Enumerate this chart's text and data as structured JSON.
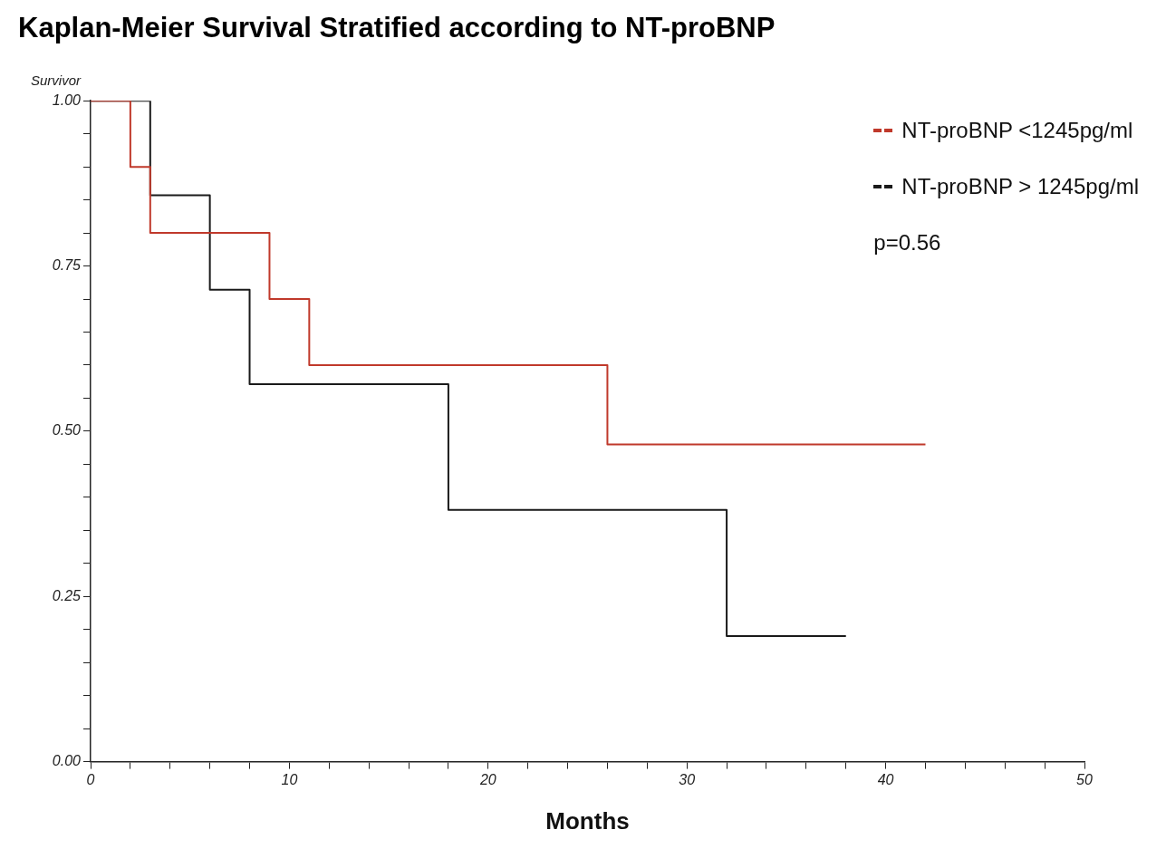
{
  "chart_data": {
    "type": "step",
    "title": "Kaplan-Meier Survival Stratified according to NT-proBNP",
    "xlabel": "Months",
    "ylabel": "Survivor",
    "series": [
      {
        "name": "NT-proBNP <1245pg/ml",
        "color": "#c0392b",
        "x": [
          0,
          2,
          3,
          9,
          11,
          26,
          42
        ],
        "values": [
          1,
          0.9,
          0.8,
          0.7,
          0.6,
          0.48,
          0.48
        ]
      },
      {
        "name": "NT-proBNP > 1245pg/ml",
        "color": "#1a1a1a",
        "x": [
          0,
          3,
          6,
          8,
          18,
          32,
          38
        ],
        "values": [
          1,
          0.857,
          0.714,
          0.571,
          0.381,
          0.19,
          0.19
        ]
      }
    ],
    "xlim": [
      0,
      50
    ],
    "xticks": [
      0,
      {
        "value": 2,
        "label": null
      },
      {
        "value": 4,
        "label": null
      },
      {
        "value": 6,
        "label": null
      },
      {
        "value": 8,
        "label": null
      },
      10,
      {
        "value": 12,
        "label": null
      },
      {
        "value": 14,
        "label": null
      },
      {
        "value": 16,
        "label": null
      },
      {
        "value": 18,
        "label": null
      },
      20,
      {
        "value": 22,
        "label": null
      },
      {
        "value": 24,
        "label": null
      },
      {
        "value": 26,
        "label": null
      },
      {
        "value": 28,
        "label": null
      },
      30,
      {
        "value": 32,
        "label": null
      },
      {
        "value": 34,
        "label": null
      },
      {
        "value": 36,
        "label": null
      },
      {
        "value": 38,
        "label": null
      },
      40,
      {
        "value": 42,
        "label": null
      },
      {
        "value": 44,
        "label": null
      },
      {
        "value": 46,
        "label": null
      },
      {
        "value": 48,
        "label": null
      },
      50
    ],
    "ylim": [
      0,
      1
    ],
    "yticks": [
      {
        "value": 0,
        "label": "0.00"
      },
      {
        "value": 0.05,
        "label": null
      },
      {
        "value": 0.1,
        "label": null
      },
      {
        "value": 0.15,
        "label": null
      },
      {
        "value": 0.2,
        "label": null
      },
      {
        "value": 0.25,
        "label": "0.25"
      },
      {
        "value": 0.3,
        "label": null
      },
      {
        "value": 0.35,
        "label": null
      },
      {
        "value": 0.4,
        "label": null
      },
      {
        "value": 0.45,
        "label": null
      },
      {
        "value": 0.5,
        "label": "0.50"
      },
      {
        "value": 0.55,
        "label": null
      },
      {
        "value": 0.6,
        "label": null
      },
      {
        "value": 0.65,
        "label": null
      },
      {
        "value": 0.7,
        "label": null
      },
      {
        "value": 0.75,
        "label": "0.75"
      },
      {
        "value": 0.8,
        "label": null
      },
      {
        "value": 0.85,
        "label": null
      },
      {
        "value": 0.9,
        "label": null
      },
      {
        "value": 0.95,
        "label": null
      },
      {
        "value": 1,
        "label": "1.00"
      }
    ],
    "grid": false,
    "legend": "top right",
    "marker": "none",
    "line_style": "solid",
    "annotations": [
      "p=0.56"
    ]
  }
}
